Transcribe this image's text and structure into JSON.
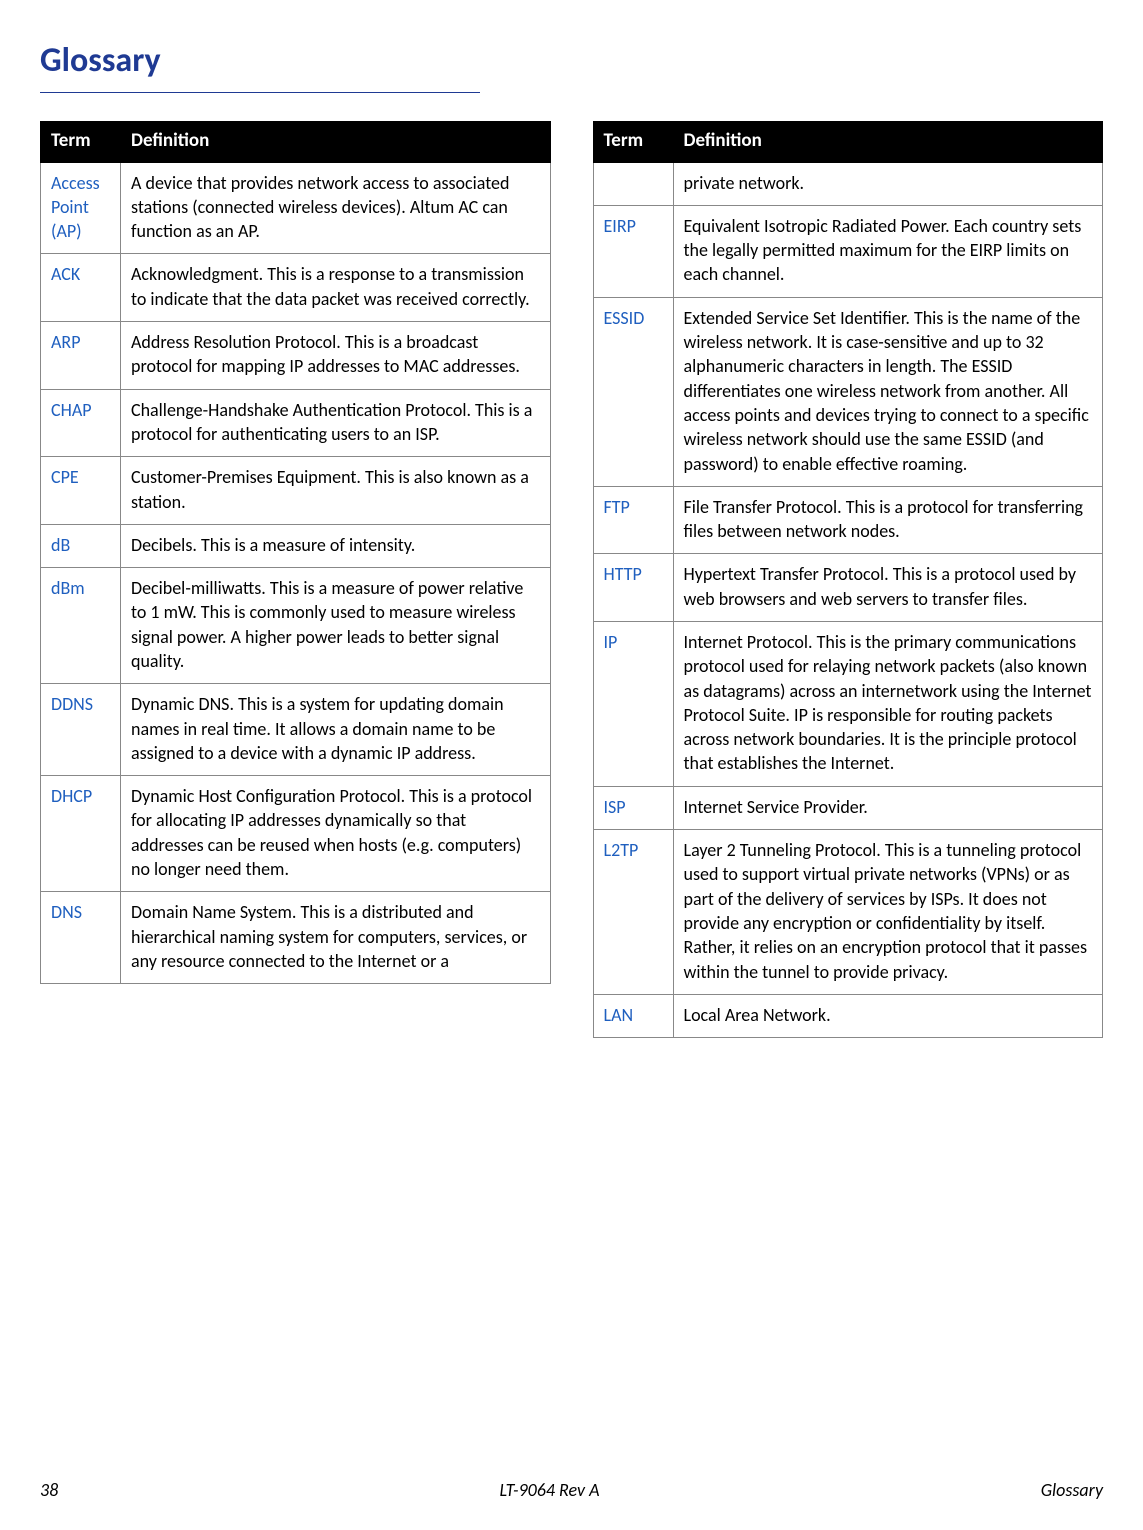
{
  "title": "Glossary",
  "headers": {
    "term": "Term",
    "definition": "Definition"
  },
  "left_rows": [
    {
      "term": "Access Point (AP)",
      "def": "A device that provides network access to associated stations (connected wireless devices). Altum AC can function as an AP."
    },
    {
      "term": "ACK",
      "def": "Acknowledgment. This is a response to a transmission to indicate that the data packet was received correctly."
    },
    {
      "term": "ARP",
      "def": "Address Resolution Protocol. This is a broadcast protocol for mapping IP addresses to MAC addresses."
    },
    {
      "term": "CHAP",
      "def": "Challenge-Handshake Authentication Protocol. This is a protocol for authenticating users to an ISP."
    },
    {
      "term": "CPE",
      "def": "Customer-Premises Equipment. This is also known as a station."
    },
    {
      "term": "dB",
      "def": "Decibels. This is a measure of intensity."
    },
    {
      "term": "dBm",
      "def": "Decibel-milliwatts. This is a measure of power relative to 1 mW. This is commonly used to measure wireless signal power. A higher power leads to better signal quality."
    },
    {
      "term": "DDNS",
      "def": "Dynamic DNS. This is a system for updating domain names in real time. It allows a domain name to be assigned to a device with a dynamic IP address."
    },
    {
      "term": "DHCP",
      "def": "Dynamic Host Configuration Protocol. This is a protocol for allocating IP addresses dynamically so that addresses can be reused when hosts (e.g. computers) no longer need them."
    },
    {
      "term": "DNS",
      "def": "Domain Name System. This is a distributed and hierarchical naming system for computers, services, or any resource connected to the Internet or a"
    }
  ],
  "right_rows": [
    {
      "term": "",
      "def": "private network."
    },
    {
      "term": "EIRP",
      "def": "Equivalent Isotropic Radiated Power. Each country sets the legally permitted maximum for the EIRP limits on each channel."
    },
    {
      "term": "ESSID",
      "def": "Extended Service Set Identifier. This is the name of the wireless network. It is case-sensitive and up to 32 alphanumeric characters in length. The ESSID differentiates one wireless network from another. All access points and devices trying to connect to a specific wireless network should use the same ESSID (and password) to enable effective roaming."
    },
    {
      "term": "FTP",
      "def": "File Transfer Protocol. This is a protocol for transferring files between network nodes."
    },
    {
      "term": "HTTP",
      "def": "Hypertext Transfer Protocol. This is a protocol used by web browsers and web servers to transfer files."
    },
    {
      "term": "IP",
      "def": "Internet Protocol. This is the primary communications protocol used for relaying network packets (also known as datagrams) across an internetwork using the Internet Protocol Suite. IP is responsible for routing packets across network boundaries. It is the principle protocol that establishes the Internet."
    },
    {
      "term": "ISP",
      "def": "Internet Service Provider."
    },
    {
      "term": "L2TP",
      "def": "Layer 2 Tunneling Protocol. This is a tunneling protocol used to support virtual private networks (VPNs) or as part of the delivery of services by ISPs. It does not provide any encryption or confidentiality by itself. Rather, it relies on an encryption protocol that it passes within the tunnel to provide privacy."
    },
    {
      "term": "LAN",
      "def": "Local Area Network."
    }
  ],
  "footer": {
    "page": "38",
    "doc": "LT-9064 Rev A",
    "section": "Glossary"
  }
}
